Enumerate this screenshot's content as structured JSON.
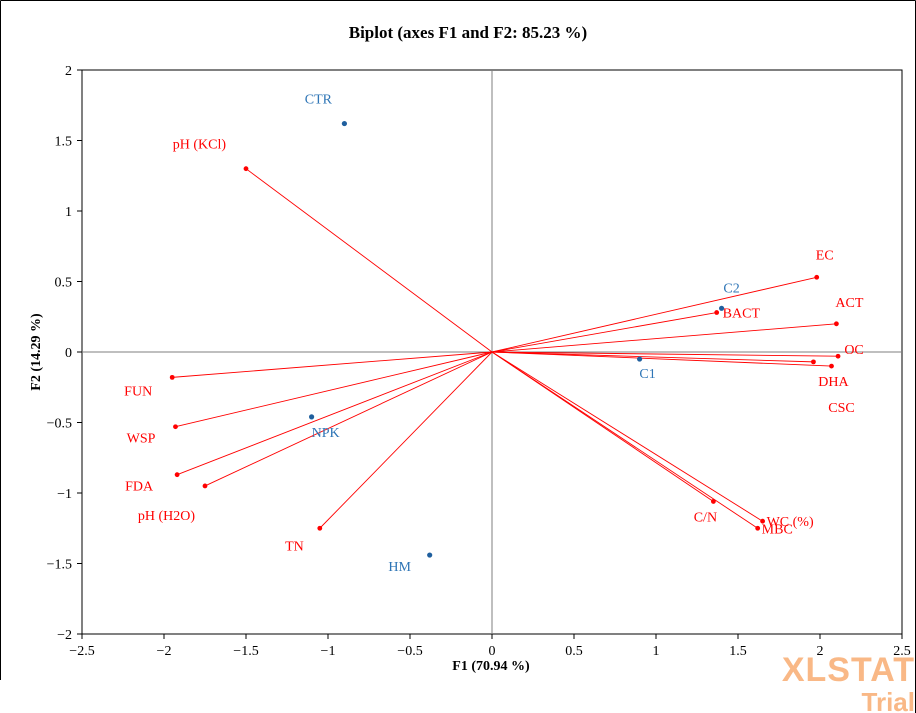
{
  "chart_data": {
    "type": "scatter",
    "title": "Biplot (axes F1 and F2: 85.23 %)",
    "xlabel": "F1 (70.94 %)",
    "ylabel": "F2 (14.29 %)",
    "xlim": [
      -2.5,
      2.5
    ],
    "ylim": [
      -2,
      2
    ],
    "xticks": [
      -2.5,
      -2,
      -1.5,
      -1,
      -0.5,
      0,
      0.5,
      1,
      1.5,
      2,
      2.5
    ],
    "yticks": [
      -2,
      -1.5,
      -1,
      -0.5,
      0,
      0.5,
      1,
      1.5,
      2
    ],
    "xtick_labels": [
      "−2.5",
      "−2",
      "−1.5",
      "−1",
      "−0.5",
      "0",
      "0.5",
      "1",
      "1.5",
      "2",
      "2.5"
    ],
    "ytick_labels": [
      "−2",
      "−1.5",
      "−1",
      "−0.5",
      "0",
      "0.5",
      "1",
      "1.5",
      "2"
    ],
    "grid": false,
    "variables": [
      {
        "name": "pH (KCl)",
        "x": -1.5,
        "y": 1.3
      },
      {
        "name": "EC",
        "x": 1.98,
        "y": 0.53
      },
      {
        "name": "ACT",
        "x": 2.1,
        "y": 0.2
      },
      {
        "name": "BACT",
        "x": 1.37,
        "y": 0.28
      },
      {
        "name": "OC",
        "x": 2.11,
        "y": -0.03
      },
      {
        "name": "DHA",
        "x": 1.96,
        "y": -0.07
      },
      {
        "name": "CSC",
        "x": 2.07,
        "y": -0.1
      },
      {
        "name": "FUN",
        "x": -1.95,
        "y": -0.18
      },
      {
        "name": "WSP",
        "x": -1.93,
        "y": -0.53
      },
      {
        "name": "FDA",
        "x": -1.92,
        "y": -0.87
      },
      {
        "name": "pH (H2O)",
        "x": -1.75,
        "y": -0.95
      },
      {
        "name": "TN",
        "x": -1.05,
        "y": -1.25
      },
      {
        "name": "C/N",
        "x": 1.35,
        "y": -1.06
      },
      {
        "name": "WC (%)",
        "x": 1.65,
        "y": -1.2
      },
      {
        "name": "MBC",
        "x": 1.62,
        "y": -1.25
      }
    ],
    "observations": [
      {
        "name": "CTR",
        "x": -0.9,
        "y": 1.62
      },
      {
        "name": "C2",
        "x": 1.4,
        "y": 0.31
      },
      {
        "name": "C1",
        "x": 0.9,
        "y": -0.05
      },
      {
        "name": "NPK",
        "x": -1.1,
        "y": -0.46
      },
      {
        "name": "HM",
        "x": -0.38,
        "y": -1.44
      }
    ],
    "colors": {
      "variables": "#ff0000",
      "observations": "#1f5f9e",
      "observation_labels": "#2e75b6"
    }
  },
  "watermark": {
    "main": "XLSTAT",
    "sub": "Trial"
  }
}
